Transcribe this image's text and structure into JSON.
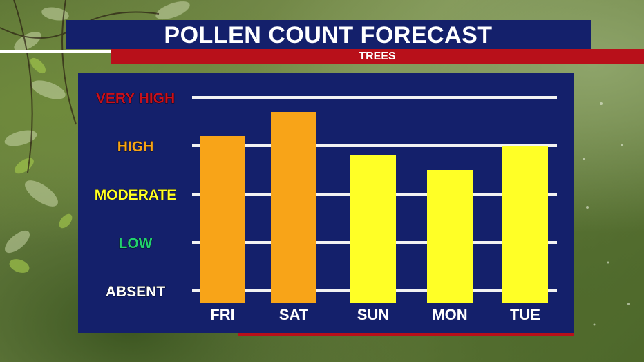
{
  "header": {
    "title": "POLLEN COUNT FORECAST",
    "subtitle": "TREES"
  },
  "colors": {
    "panel": "#14206b",
    "accent_red": "#b8101a",
    "orange_bar": "#f8a418",
    "yellow_bar": "#ffff26",
    "level_very_high": "#c8101e",
    "level_high": "#f8a418",
    "level_moderate": "#ffff26",
    "level_low": "#22d070",
    "level_absent": "#ffffff"
  },
  "chart_data": {
    "type": "bar",
    "title": "POLLEN COUNT FORECAST",
    "subtitle": "TREES",
    "categories": [
      "FRI",
      "SAT",
      "SUN",
      "MON",
      "TUE"
    ],
    "values": [
      3.2,
      3.7,
      2.8,
      2.5,
      3.0
    ],
    "bar_colors": [
      "#f8a418",
      "#f8a418",
      "#ffff26",
      "#ffff26",
      "#ffff26"
    ],
    "y_levels": [
      {
        "label": "ABSENT",
        "value": 0,
        "color": "#ffffff"
      },
      {
        "label": "LOW",
        "value": 1,
        "color": "#22d070"
      },
      {
        "label": "MODERATE",
        "value": 2,
        "color": "#ffff26"
      },
      {
        "label": "HIGH",
        "value": 3,
        "color": "#f8a418"
      },
      {
        "label": "VERY HIGH",
        "value": 4,
        "color": "#c8101e"
      }
    ],
    "ylim": [
      0,
      4
    ],
    "grid": true,
    "legend": false
  }
}
